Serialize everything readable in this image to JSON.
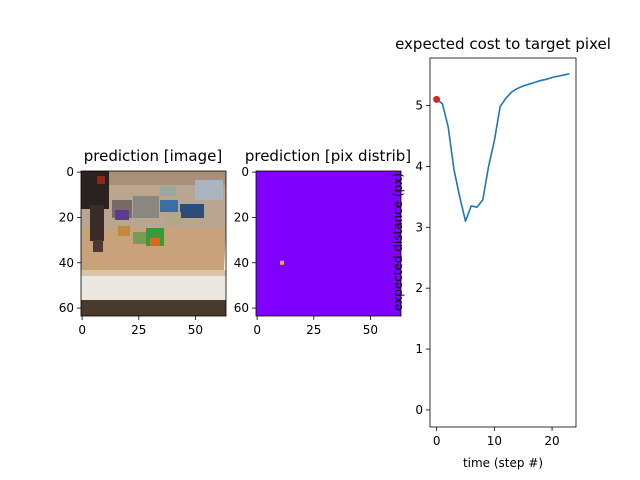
{
  "chart_data": [
    {
      "type": "image",
      "title": "prediction [image]",
      "xticks": [
        0,
        25,
        50
      ],
      "yticks": [
        0,
        20,
        40,
        60
      ],
      "xlim": [
        0,
        63
      ],
      "ylim": [
        63,
        0
      ],
      "description_colors": {
        "table": "#c8a27a",
        "floor": "#ece8e0",
        "wall": "#b9a590",
        "robot_arm": "#2b2220"
      }
    },
    {
      "type": "heatmap",
      "title": "prediction [pix distrib]",
      "xticks": [
        0,
        25,
        50
      ],
      "yticks": [
        0,
        20,
        40,
        60
      ],
      "xlim": [
        0,
        63
      ],
      "ylim": [
        63,
        0
      ],
      "background_color": "#7f00ff",
      "peak": {
        "x": 11,
        "y": 40,
        "color": "#e0b030"
      }
    },
    {
      "type": "line",
      "title": "expected cost to target pixel",
      "xlabel": "time (step #)",
      "ylabel": "expected distance (px)",
      "xticks": [
        0,
        10,
        20
      ],
      "yticks": [
        0,
        1,
        2,
        3,
        4,
        5
      ],
      "xlim": [
        -1.15,
        24.15
      ],
      "ylim": [
        -0.28,
        5.78
      ],
      "series": [
        {
          "color": "#1f77b4",
          "x": [
            0,
            1,
            2,
            3,
            4,
            5,
            6,
            7,
            8,
            9,
            10,
            11,
            12,
            13,
            14,
            15,
            16,
            17,
            18,
            19,
            20,
            21,
            22,
            23
          ],
          "values": [
            5.1,
            5.03,
            4.65,
            3.95,
            3.5,
            3.1,
            3.35,
            3.33,
            3.45,
            4.0,
            4.42,
            4.98,
            5.12,
            5.22,
            5.28,
            5.32,
            5.35,
            5.38,
            5.41,
            5.43,
            5.46,
            5.48,
            5.5,
            5.52
          ]
        }
      ],
      "marker": {
        "x": 0,
        "y": 5.1,
        "color": "#d62728"
      }
    }
  ]
}
